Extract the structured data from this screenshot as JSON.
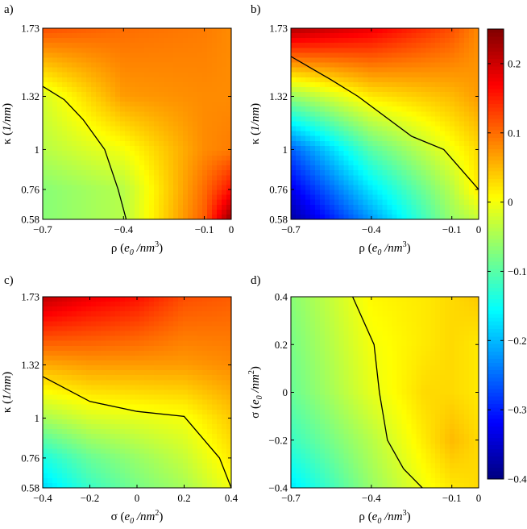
{
  "chart_data": {
    "type": "heatmap",
    "figure": {
      "panels": [
        {
          "id": "a",
          "label": "a)",
          "xlabel": "ρ (e0/nm3)",
          "ylabel": "κ (1/nm)",
          "xlabel_parts": [
            "ρ (",
            "e",
            "0",
            " /nm",
            "3",
            ")"
          ],
          "ylabel_parts": [
            "κ (",
            "1/nm",
            ")"
          ],
          "xlim": [
            -0.7,
            0
          ],
          "ylim": [
            0.58,
            1.73
          ],
          "xticks": [
            {
              "v": -0.7,
              "t": "−0.7"
            },
            {
              "v": -0.4,
              "t": "−0.4"
            },
            {
              "v": -0.1,
              "t": "−0.1"
            },
            {
              "v": 0,
              "t": "0"
            }
          ],
          "yticks": [
            {
              "v": 0.58,
              "t": "0.58"
            },
            {
              "v": 0.76,
              "t": "0.76"
            },
            {
              "v": 1.0,
              "t": "1"
            },
            {
              "v": 1.32,
              "t": "1.32"
            },
            {
              "v": 1.73,
              "t": "1.73"
            }
          ],
          "grid_x": [
            -0.7,
            -0.4,
            -0.1,
            0
          ],
          "grid_y": [
            0.58,
            0.76,
            1.0,
            1.32,
            1.73
          ],
          "values": [
            [
              -0.07,
              -0.04,
              0.11,
              0.24
            ],
            [
              -0.07,
              -0.04,
              0.1,
              0.16
            ],
            [
              -0.04,
              0.0,
              0.08,
              0.09
            ],
            [
              -0.02,
              0.07,
              0.08,
              0.08
            ],
            [
              0.12,
              0.1,
              0.09,
              0.08
            ]
          ],
          "zero_contour": [
            [
              -0.7,
              1.38
            ],
            [
              -0.62,
              1.3
            ],
            [
              -0.55,
              1.18
            ],
            [
              -0.47,
              1.0
            ],
            [
              -0.42,
              0.76
            ],
            [
              -0.39,
              0.58
            ]
          ]
        },
        {
          "id": "b",
          "label": "b)",
          "xlabel": "ρ (e0/nm3)",
          "ylabel": "κ (1/nm)",
          "xlabel_parts": [
            "ρ (",
            "e",
            "0",
            " /nm",
            "3",
            ")"
          ],
          "ylabel_parts": [
            "κ (",
            "1/nm",
            ")"
          ],
          "xlim": [
            -0.7,
            0
          ],
          "ylim": [
            0.58,
            1.73
          ],
          "xticks": [
            {
              "v": -0.7,
              "t": "−0.7"
            },
            {
              "v": -0.4,
              "t": "−0.4"
            },
            {
              "v": -0.1,
              "t": "−0.1"
            },
            {
              "v": 0,
              "t": "0"
            }
          ],
          "yticks": [
            {
              "v": 0.58,
              "t": "0.58"
            },
            {
              "v": 0.76,
              "t": "0.76"
            },
            {
              "v": 1.0,
              "t": "1"
            },
            {
              "v": 1.32,
              "t": "1.32"
            },
            {
              "v": 1.73,
              "t": "1.73"
            }
          ],
          "grid_x": [
            -0.7,
            -0.4,
            -0.1,
            0
          ],
          "grid_y": [
            0.58,
            0.76,
            1.0,
            1.32,
            1.73
          ],
          "values": [
            [
              -0.38,
              -0.22,
              -0.06,
              -0.03
            ],
            [
              -0.33,
              -0.17,
              -0.04,
              0.02
            ],
            [
              -0.26,
              -0.1,
              0.0,
              0.03
            ],
            [
              -0.06,
              0.02,
              0.05,
              0.07
            ],
            [
              0.22,
              0.18,
              0.12,
              0.08
            ]
          ],
          "zero_contour": [
            [
              -0.7,
              1.56
            ],
            [
              -0.55,
              1.42
            ],
            [
              -0.45,
              1.32
            ],
            [
              -0.25,
              1.08
            ],
            [
              -0.13,
              1.0
            ],
            [
              0,
              0.76
            ]
          ]
        },
        {
          "id": "c",
          "label": "c)",
          "xlabel": "σ (e0/nm2)",
          "ylabel": "κ (1/nm)",
          "xlabel_parts": [
            "σ (",
            "e",
            "0",
            " /nm",
            "2",
            ")"
          ],
          "ylabel_parts": [
            "κ (",
            "1/nm",
            ")"
          ],
          "xlim": [
            -0.4,
            0.4
          ],
          "ylim": [
            0.58,
            1.73
          ],
          "xticks": [
            {
              "v": -0.4,
              "t": "−0.4"
            },
            {
              "v": -0.2,
              "t": "−0.2"
            },
            {
              "v": 0,
              "t": "0"
            },
            {
              "v": 0.2,
              "t": "0.2"
            },
            {
              "v": 0.4,
              "t": "0.4"
            }
          ],
          "yticks": [
            {
              "v": 0.58,
              "t": "0.58"
            },
            {
              "v": 0.76,
              "t": "0.76"
            },
            {
              "v": 1.0,
              "t": "1"
            },
            {
              "v": 1.32,
              "t": "1.32"
            },
            {
              "v": 1.73,
              "t": "1.73"
            }
          ],
          "grid_x": [
            -0.4,
            -0.2,
            0,
            0.2,
            0.4
          ],
          "grid_y": [
            0.58,
            0.76,
            1.0,
            1.32,
            1.73
          ],
          "values": [
            [
              -0.18,
              -0.12,
              -0.08,
              -0.05,
              0.0
            ],
            [
              -0.14,
              -0.09,
              -0.06,
              -0.03,
              0.02
            ],
            [
              -0.05,
              -0.02,
              -0.01,
              0.0,
              0.04
            ],
            [
              0.06,
              0.07,
              0.07,
              0.07,
              0.08
            ],
            [
              0.21,
              0.18,
              0.16,
              0.12,
              0.11
            ]
          ],
          "zero_contour": [
            [
              -0.4,
              1.25
            ],
            [
              -0.2,
              1.1
            ],
            [
              0,
              1.04
            ],
            [
              0.2,
              1.01
            ],
            [
              0.35,
              0.76
            ],
            [
              0.4,
              0.58
            ]
          ]
        },
        {
          "id": "d",
          "label": "d)",
          "xlabel": "ρ (e0/nm3)",
          "ylabel": "σ (e0/nm2)",
          "xlabel_parts": [
            "ρ (",
            "e",
            "0",
            " /nm",
            "3",
            ")"
          ],
          "ylabel_parts": [
            "σ (",
            "e",
            "0",
            " /nm",
            "2",
            ")"
          ],
          "xlim": [
            -0.7,
            0
          ],
          "ylim": [
            -0.4,
            0.4
          ],
          "xticks": [
            {
              "v": -0.7,
              "t": "−0.7"
            },
            {
              "v": -0.4,
              "t": "−0.4"
            },
            {
              "v": -0.1,
              "t": "−0.1"
            },
            {
              "v": 0,
              "t": "0"
            }
          ],
          "yticks": [
            {
              "v": -0.4,
              "t": "−0.4"
            },
            {
              "v": -0.2,
              "t": "−0.2"
            },
            {
              "v": 0,
              "t": "0"
            },
            {
              "v": 0.2,
              "t": "0.2"
            },
            {
              "v": 0.4,
              "t": "0.4"
            }
          ],
          "grid_x": [
            -0.7,
            -0.4,
            -0.2,
            -0.1,
            0
          ],
          "grid_y": [
            -0.4,
            -0.2,
            0,
            0.2,
            0.4
          ],
          "values": [
            [
              -0.17,
              -0.06,
              0.0,
              0.02,
              0.03
            ],
            [
              -0.12,
              -0.04,
              0.02,
              0.05,
              0.03
            ],
            [
              -0.09,
              -0.01,
              0.03,
              0.03,
              0.02
            ],
            [
              -0.08,
              0.0,
              0.02,
              0.03,
              0.02
            ],
            [
              -0.07,
              0.01,
              0.02,
              0.03,
              0.04
            ]
          ],
          "zero_contour": [
            [
              -0.47,
              0.4
            ],
            [
              -0.39,
              0.2
            ],
            [
              -0.37,
              0.0
            ],
            [
              -0.34,
              -0.2
            ],
            [
              -0.28,
              -0.32
            ],
            [
              -0.21,
              -0.4
            ]
          ]
        }
      ],
      "colorbar": {
        "min": -0.4,
        "max": 0.25,
        "ticks": [
          {
            "v": 0.2,
            "t": "0.2"
          },
          {
            "v": 0.1,
            "t": "0.1"
          },
          {
            "v": 0,
            "t": "0"
          },
          {
            "v": -0.1,
            "t": "−0.1"
          },
          {
            "v": -0.2,
            "t": "−0.2"
          },
          {
            "v": -0.3,
            "t": "−0.3"
          },
          {
            "v": -0.4,
            "t": "−0.4"
          }
        ],
        "colormap": "jet",
        "contour_level": 0
      }
    }
  }
}
